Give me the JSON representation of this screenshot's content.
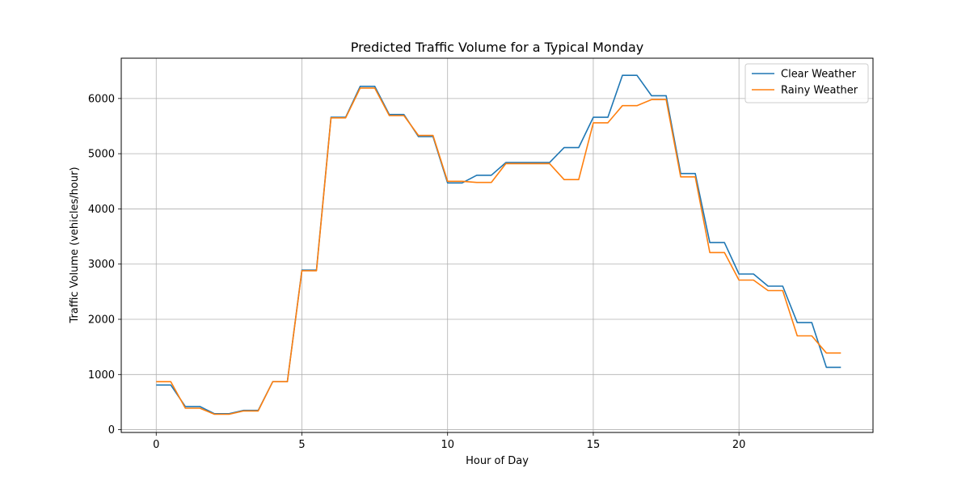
{
  "chart_data": {
    "type": "line",
    "title": "Predicted Traffic Volume for a Typical Monday",
    "xlabel": "Hour of Day",
    "ylabel": "Traffic Volume (vehicles/hour)",
    "xlim": [
      -1.2,
      24.6
    ],
    "ylim": [
      -50,
      6730
    ],
    "xticks": [
      0,
      5,
      10,
      15,
      20
    ],
    "yticks": [
      0,
      1000,
      2000,
      3000,
      4000,
      5000,
      6000
    ],
    "grid": true,
    "legend": "top-right",
    "x": [
      0,
      0.5,
      1,
      1.5,
      2,
      2.5,
      3,
      3.5,
      4,
      4.5,
      5,
      5.5,
      6,
      6.5,
      7,
      7.5,
      8,
      8.5,
      9,
      9.5,
      10,
      10.5,
      11,
      11.5,
      12,
      12.5,
      13,
      13.5,
      14,
      14.5,
      15,
      15.5,
      16,
      16.5,
      17,
      17.5,
      18,
      18.5,
      19,
      19.5,
      20,
      20.5,
      21,
      21.5,
      22,
      22.5,
      23,
      23.5
    ],
    "series": [
      {
        "name": "Clear Weather",
        "color": "#1f77b4",
        "values": [
          810,
          810,
          420,
          420,
          290,
          290,
          350,
          350,
          870,
          870,
          2890,
          2890,
          5660,
          5660,
          6220,
          6220,
          5710,
          5710,
          5310,
          5310,
          4470,
          4470,
          4610,
          4610,
          4840,
          4840,
          4840,
          4840,
          5110,
          5110,
          5660,
          5660,
          6420,
          6420,
          6050,
          6050,
          4640,
          4640,
          3390,
          3390,
          2820,
          2820,
          2600,
          2600,
          1940,
          1940,
          1130,
          1130
        ]
      },
      {
        "name": "Rainy Weather",
        "color": "#ff7f0e",
        "values": [
          870,
          870,
          390,
          390,
          280,
          280,
          340,
          340,
          870,
          870,
          2880,
          2880,
          5650,
          5650,
          6190,
          6190,
          5690,
          5690,
          5330,
          5330,
          4500,
          4500,
          4480,
          4480,
          4820,
          4820,
          4820,
          4820,
          4530,
          4530,
          5560,
          5560,
          5870,
          5870,
          5980,
          5980,
          4580,
          4580,
          3210,
          3210,
          2710,
          2710,
          2520,
          2520,
          1700,
          1700,
          1390,
          1390
        ]
      }
    ]
  }
}
